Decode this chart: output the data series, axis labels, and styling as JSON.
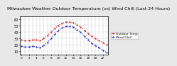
{
  "title": "Milwaukee Weather Outdoor Temperature (vs) Wind Chill (Last 24 Hours)",
  "title_fontsize": 4.5,
  "bg_color": "#e8e8e8",
  "plot_bg_color": "#ffffff",
  "temp_color": "#cc0000",
  "wind_chill_color": "#0000cc",
  "grid_color": "#888888",
  "hours": [
    0,
    1,
    2,
    3,
    4,
    5,
    6,
    7,
    8,
    9,
    10,
    11,
    12,
    13,
    14,
    15,
    16,
    17,
    18,
    19,
    20,
    21,
    22,
    23
  ],
  "temp": [
    28,
    27,
    27,
    28,
    28,
    27,
    30,
    35,
    40,
    46,
    51,
    54,
    56,
    56,
    55,
    52,
    48,
    43,
    38,
    34,
    30,
    27,
    24,
    20
  ],
  "wind_chill": [
    18,
    17,
    17,
    18,
    17,
    16,
    19,
    24,
    30,
    37,
    43,
    47,
    49,
    49,
    48,
    44,
    40,
    34,
    28,
    23,
    19,
    16,
    12,
    8
  ],
  "ylim": [
    5,
    65
  ],
  "yticks": [
    10,
    20,
    30,
    40,
    50,
    60
  ],
  "ylabel_fontsize": 3.5,
  "xlabel_fontsize": 3.0,
  "tick_fontsize": 3.0,
  "legend_fontsize": 3.2,
  "temp_label": "Outdoor Temp",
  "wind_chill_label": "Wind Chill"
}
